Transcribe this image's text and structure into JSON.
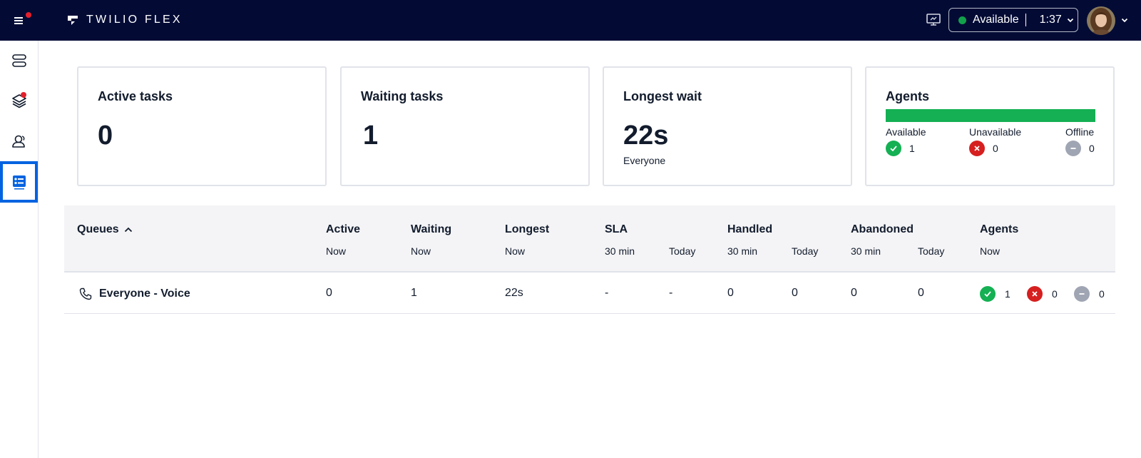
{
  "topbar": {
    "brand": "TWILIO FLEX",
    "status_label": "Available",
    "status_time": "1:37",
    "status_color": "#12a14a"
  },
  "sidenav": {
    "items": [
      {
        "name": "queues-icon"
      },
      {
        "name": "layers-icon",
        "badge": true
      },
      {
        "name": "teams-icon"
      },
      {
        "name": "dashboard-icon",
        "selected": true
      }
    ]
  },
  "cards": {
    "active_tasks": {
      "title": "Active tasks",
      "value": "0"
    },
    "waiting_tasks": {
      "title": "Waiting tasks",
      "value": "1"
    },
    "longest_wait": {
      "title": "Longest wait",
      "value": "22s",
      "sub": "Everyone"
    },
    "agents": {
      "title": "Agents",
      "bar_color": "#14b053",
      "available_label": "Available",
      "available_count": "1",
      "unavailable_label": "Unavailable",
      "unavailable_count": "0",
      "offline_label": "Offline",
      "offline_count": "0"
    }
  },
  "table": {
    "headers": {
      "queues": "Queues",
      "active": "Active",
      "active_sub": "Now",
      "waiting": "Waiting",
      "waiting_sub": "Now",
      "longest": "Longest",
      "longest_sub": "Now",
      "sla": "SLA",
      "sla_sub1": "30 min",
      "sla_sub2": "Today",
      "handled": "Handled",
      "handled_sub1": "30 min",
      "handled_sub2": "Today",
      "abandoned": "Abandoned",
      "abandoned_sub1": "30 min",
      "abandoned_sub2": "Today",
      "agents": "Agents",
      "agents_sub": "Now"
    },
    "rows": [
      {
        "name": "Everyone - Voice",
        "active": "0",
        "waiting": "1",
        "longest": "22s",
        "sla_30": "-",
        "sla_today": "-",
        "handled_30": "0",
        "handled_today": "0",
        "abandoned_30": "0",
        "abandoned_today": "0",
        "agents_available": "1",
        "agents_unavailable": "0",
        "agents_offline": "0"
      }
    ]
  },
  "colors": {
    "available": "#14b053",
    "unavailable": "#d61f1f",
    "offline": "#a0a5b3",
    "selected": "#0263e0"
  }
}
